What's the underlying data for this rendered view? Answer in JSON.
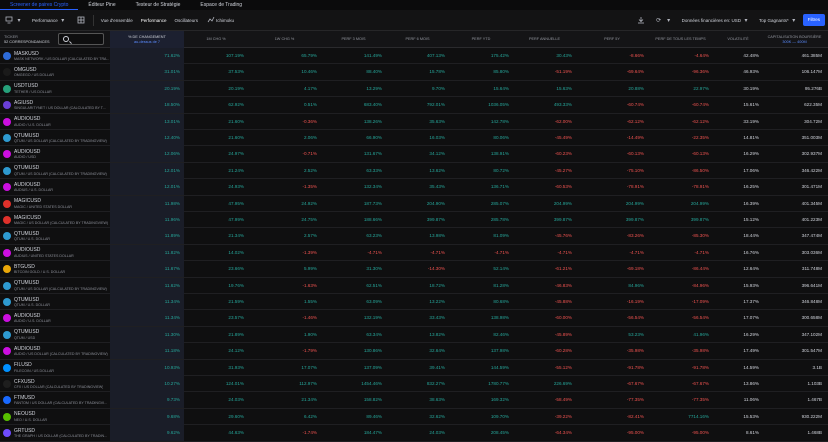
{
  "top_tabs": [
    "Screener de paires Crypto",
    "Éditeur Pine",
    "Testeur de Stratégie",
    "Espace de Trading"
  ],
  "toolbar": {
    "left": [
      "Performance",
      "Vue d'ensemble",
      "Performance",
      "Oscillateurs",
      "Ichimoku"
    ],
    "right": [
      "Données financières en: USD",
      "Top Gagnants*",
      "Filtres"
    ]
  },
  "headers": {
    "symbol": [
      "TICKER",
      "52 CORRESPONDANCES"
    ],
    "cols": [
      {
        "label": "% DE CHANGEMENT",
        "sub": "au-dessus de 7"
      },
      {
        "label": "1M CHG %"
      },
      {
        "label": "1W CHG %"
      },
      {
        "label": "PERF 3 MOIS"
      },
      {
        "label": "PERF 6 MOIS"
      },
      {
        "label": "PERF YTD"
      },
      {
        "label": "PERF ANNUELLE"
      },
      {
        "label": "PERF 5Y"
      },
      {
        "label": "PERF DE TOUS LES TEMPS"
      },
      {
        "label": "VOLATILITÉ"
      },
      {
        "label": "CAPITALISATION BOURSIÈRE",
        "sub": "300K — 400M"
      }
    ]
  },
  "rows": [
    {
      "sym": "MASKUSD",
      "desc": "MASK NETWORK / US DOLLAR (CALCULATED BY TRA...",
      "color": "#2e6bd8",
      "v": [
        "71.62%",
        "107.19%",
        "65.79%",
        "141.49%",
        "407.13%",
        "175.42%",
        "30.43%",
        "-8.66%",
        "-4.64%",
        "42.48%",
        "461.385M"
      ]
    },
    {
      "sym": "OMGUSD",
      "desc": "OMGEGO / US DOLLAR",
      "color": "#1a1a1a",
      "v": [
        "31.01%",
        "37.53%",
        "10.46%",
        "88.40%",
        "15.78%",
        "85.80%",
        "-51.19%",
        "-69.64%",
        "-96.36%",
        "46.93%",
        "106.147M"
      ]
    },
    {
      "sym": "USDTUSD",
      "desc": "TETHER / US DOLLAR",
      "color": "#26a17b",
      "v": [
        "20.19%",
        "20.19%",
        "4.17%",
        "13.29%",
        "9.70%",
        "15.64%",
        "15.63%",
        "20.88%",
        "22.97%",
        "30.19%",
        "95.276B"
      ]
    },
    {
      "sym": "AGIUSD",
      "desc": "SINGULARITYNET / US DOLLAR (CALCULATED BY T...",
      "color": "#6a3fd6",
      "v": [
        "18.50%",
        "62.92%",
        "0.51%",
        "683.40%",
        "792.01%",
        "1036.05%",
        "493.33%",
        "-60.74%",
        "-60.74%",
        "15.61%",
        "622.35M"
      ]
    },
    {
      "sym": "AUDIOUSD",
      "desc": "AUDIO / U.S. DOLLAR",
      "color": "#cc0fe0",
      "v": [
        "13.01%",
        "21.60%",
        "-0.36%",
        "138.26%",
        "35.63%",
        "142.78%",
        "-62.00%",
        "-62.12%",
        "-62.12%",
        "33.19%",
        "304.72M"
      ]
    },
    {
      "sym": "QTUMUSD",
      "desc": "QTUM / US DOLLAR (CALCULATED BY TRADINGVIEW)",
      "color": "#2e9ad0",
      "v": [
        "12.40%",
        "21.60%",
        "2.06%",
        "66.90%",
        "16.03%",
        "80.06%",
        "-45.49%",
        "-14.49%",
        "-22.35%",
        "14.81%",
        "351.003M"
      ]
    },
    {
      "sym": "AUDIOUSD",
      "desc": "AUDIO / USD",
      "color": "#cc0fe0",
      "v": [
        "12.06%",
        "24.97%",
        "-0.71%",
        "131.67%",
        "34.12%",
        "138.91%",
        "-60.23%",
        "-60.13%",
        "-60.13%",
        "16.29%",
        "302.937M"
      ]
    },
    {
      "sym": "QTUMUSD",
      "desc": "QTUM / US DOLLAR (CALCULATED BY TRADINGVIEW)",
      "color": "#2e9ad0",
      "v": [
        "12.01%",
        "21.24%",
        "2.52%",
        "63.33%",
        "13.62%",
        "80.72%",
        "-45.27%",
        "-75.10%",
        "-86.50%",
        "17.06%",
        "346.422M"
      ]
    },
    {
      "sym": "AUDIOUSD",
      "desc": "AUDIUS / U.S. DOLLAR",
      "color": "#cc0fe0",
      "v": [
        "12.01%",
        "24.93%",
        "-1.35%",
        "132.34%",
        "35.43%",
        "136.71%",
        "-60.53%",
        "-78.91%",
        "-78.91%",
        "16.25%",
        "301.471M"
      ]
    },
    {
      "sym": "MAGICUSD",
      "desc": "MAGIC / UNITED STATES DOLLAR",
      "color": "#e0312b",
      "v": [
        "11.98%",
        "47.95%",
        "24.92%",
        "187.73%",
        "204.90%",
        "285.07%",
        "204.99%",
        "204.99%",
        "204.99%",
        "16.39%",
        "401.345M"
      ]
    },
    {
      "sym": "MAGICUSD",
      "desc": "MAGIC / US DOLLAR (CALCULATED BY TRADINGVIEW)",
      "color": "#e0312b",
      "v": [
        "11.96%",
        "47.99%",
        "24.75%",
        "188.66%",
        "399.87%",
        "285.78%",
        "399.87%",
        "399.87%",
        "399.87%",
        "15.12%",
        "401.223M"
      ]
    },
    {
      "sym": "QTUMUSD",
      "desc": "QTUM / U.S. DOLLAR",
      "color": "#2e9ad0",
      "v": [
        "11.89%",
        "21.34%",
        "2.57%",
        "63.23%",
        "13.98%",
        "81.09%",
        "-45.76%",
        "-83.26%",
        "-85.30%",
        "18.44%",
        "347.474M"
      ]
    },
    {
      "sym": "AUDIOUSD",
      "desc": "AUDIUS / UNITED STATES DOLLAR",
      "color": "#cc0fe0",
      "v": [
        "11.82%",
        "14.02%",
        "-1.39%",
        "-4.71%",
        "-4.71%",
        "-4.71%",
        "-4.71%",
        "-4.71%",
        "-4.71%",
        "16.76%",
        "303.036M"
      ]
    },
    {
      "sym": "BTGUSD",
      "desc": "BITCOIN GOLD / U.S. DOLLAR",
      "color": "#eba809",
      "v": [
        "11.67%",
        "23.66%",
        "5.99%",
        "31.30%",
        "-14.30%",
        "52.14%",
        "-61.21%",
        "-69.18%",
        "-86.44%",
        "12.64%",
        "311.748M"
      ]
    },
    {
      "sym": "QTUMUSD",
      "desc": "QTUM / US DOLLAR (CALCULATED BY TRADINGVIEW)",
      "color": "#2e9ad0",
      "v": [
        "11.62%",
        "19.76%",
        "-1.63%",
        "62.51%",
        "18.72%",
        "81.28%",
        "-46.83%",
        "84.96%",
        "-84.96%",
        "15.93%",
        "396.641M"
      ]
    },
    {
      "sym": "QTUMUSD",
      "desc": "QTUM / U.S. DOLLAR",
      "color": "#2e9ad0",
      "v": [
        "11.34%",
        "21.59%",
        "1.55%",
        "63.09%",
        "13.22%",
        "80.68%",
        "-45.88%",
        "-16.19%",
        "-17.09%",
        "17.37%",
        "346.848M"
      ]
    },
    {
      "sym": "AUDIOUSD",
      "desc": "AUDIO / U.S. DOLLAR",
      "color": "#cc0fe0",
      "v": [
        "11.34%",
        "23.57%",
        "-1.46%",
        "132.19%",
        "33.43%",
        "138.98%",
        "-60.00%",
        "-56.54%",
        "-56.54%",
        "17.07%",
        "300.658M"
      ]
    },
    {
      "sym": "QTUMUSD",
      "desc": "QTUM / USD",
      "color": "#2e9ad0",
      "v": [
        "11.30%",
        "21.89%",
        "1.90%",
        "63.34%",
        "13.82%",
        "82.46%",
        "-45.89%",
        "53.23%",
        "41.96%",
        "16.29%",
        "347.102M"
      ]
    },
    {
      "sym": "AUDIOUSD",
      "desc": "AUDIO / US DOLLAR (CALCULATED BY TRADINGVIEW)",
      "color": "#cc0fe0",
      "v": [
        "11.18%",
        "24.12%",
        "-1.79%",
        "130.86%",
        "32.64%",
        "137.98%",
        "-60.28%",
        "-35.98%",
        "-35.98%",
        "17.49%",
        "301.547M"
      ]
    },
    {
      "sym": "FILUSD",
      "desc": "FILECOIN / US DOLLAR",
      "color": "#0090ff",
      "v": [
        "10.93%",
        "31.93%",
        "17.07%",
        "137.09%",
        "39.41%",
        "144.59%",
        "-55.12%",
        "-91.78%",
        "-91.78%",
        "14.59%",
        "3.1B"
      ]
    },
    {
      "sym": "CFXUSD",
      "desc": "CFX / US DOLLAR (CALCULATED BY TRADINGVIEW)",
      "color": "#1e1e1e",
      "v": [
        "10.27%",
        "124.01%",
        "112.97%",
        "1454.46%",
        "832.27%",
        "1780.77%",
        "226.69%",
        "-67.67%",
        "-67.67%",
        "13.86%",
        "1.103B"
      ]
    },
    {
      "sym": "FTMUSD",
      "desc": "FANTOM / US DOLLAR (CALCULATED BY TRADINGVI...",
      "color": "#1969ff",
      "v": [
        "9.73%",
        "24.03%",
        "21.34%",
        "158.82%",
        "38.63%",
        "169.32%",
        "-58.49%",
        "-77.35%",
        "-77.35%",
        "11.06%",
        "1.467B"
      ]
    },
    {
      "sym": "NEOUSD",
      "desc": "NEO / U.S. DOLLAR",
      "color": "#58bf00",
      "v": [
        "9.68%",
        "29.60%",
        "6.42%",
        "89.46%",
        "32.62%",
        "109.70%",
        "-39.22%",
        "-82.41%",
        "7714.16%",
        "15.53%",
        "930.222M"
      ]
    },
    {
      "sym": "GRTUSD",
      "desc": "THE GRAPH / US DOLLAR (CALCULATED BY TRADIN...",
      "color": "#6f4cff",
      "v": [
        "9.62%",
        "44.63%",
        "-1.74%",
        "184.47%",
        "24.03%",
        "208.45%",
        "-64.34%",
        "-95.00%",
        "-95.00%",
        "8.61%",
        "1.468B"
      ]
    }
  ]
}
